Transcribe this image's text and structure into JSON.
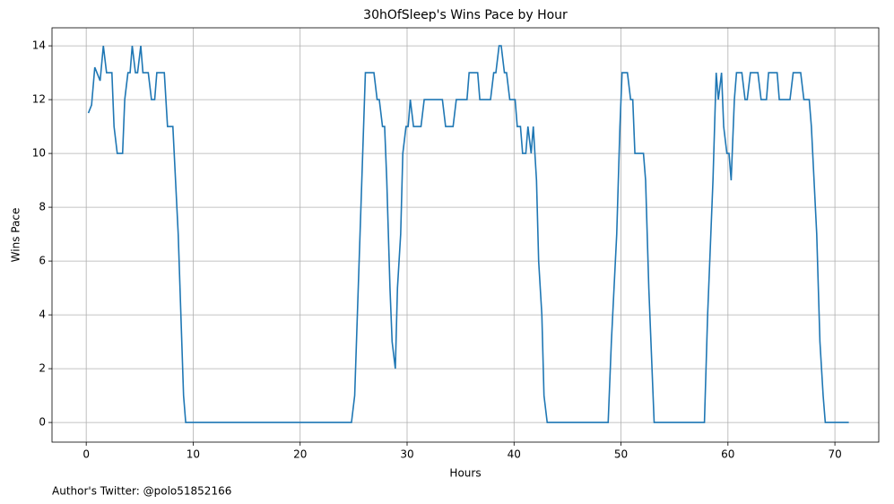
{
  "chart_data": {
    "type": "line",
    "title": "30hOfSleep's Wins Pace by Hour",
    "xlabel": "Hours",
    "ylabel": "Wins Pace",
    "footnote": "Author's Twitter: @polo51852166",
    "color": "#1f77b4",
    "grid": true,
    "xlim": [
      -3.2,
      74.1
    ],
    "ylim": [
      -0.73,
      14.67
    ],
    "xticks": [
      0,
      10,
      20,
      30,
      40,
      50,
      60,
      70
    ],
    "yticks": [
      0,
      2,
      4,
      6,
      8,
      10,
      12,
      14
    ],
    "x": [
      0.2,
      0.5,
      0.8,
      1.3,
      1.6,
      1.9,
      2.4,
      2.6,
      2.9,
      3.4,
      3.6,
      3.9,
      4.1,
      4.3,
      4.6,
      4.8,
      5.1,
      5.3,
      5.8,
      6.1,
      6.4,
      6.6,
      7.3,
      7.6,
      8.1,
      8.6,
      9.1,
      9.3,
      24.8,
      25.1,
      25.6,
      26.1,
      26.9,
      27.2,
      27.4,
      27.7,
      27.9,
      28.1,
      28.4,
      28.6,
      28.9,
      29.1,
      29.4,
      29.6,
      29.9,
      30.1,
      30.3,
      30.6,
      31.3,
      31.6,
      33.3,
      33.6,
      34.3,
      34.6,
      35.6,
      35.8,
      36.6,
      36.8,
      37.8,
      38.1,
      38.3,
      38.6,
      38.8,
      39.1,
      39.3,
      39.6,
      40.1,
      40.3,
      40.6,
      40.8,
      41.1,
      41.3,
      41.6,
      41.8,
      42.1,
      42.3,
      42.6,
      42.8,
      43.1,
      48.8,
      49.1,
      49.6,
      49.9,
      50.1,
      50.6,
      50.9,
      51.1,
      51.3,
      52.1,
      52.3,
      52.6,
      53.1,
      57.8,
      58.1,
      58.6,
      58.9,
      59.1,
      59.4,
      59.6,
      59.9,
      60.1,
      60.3,
      60.6,
      60.8,
      61.3,
      61.6,
      61.8,
      62.1,
      62.8,
      63.1,
      63.6,
      63.8,
      64.6,
      64.8,
      65.8,
      66.1,
      66.8,
      67.1,
      67.6,
      67.8,
      68.3,
      68.6,
      68.9,
      69.1,
      71.3
    ],
    "values": [
      11.5,
      11.8,
      13.2,
      12.7,
      14,
      13,
      13,
      11,
      10,
      10,
      12,
      13,
      13,
      14,
      13,
      13,
      14,
      13,
      13,
      12,
      12,
      13,
      13,
      11,
      11,
      7,
      1,
      0,
      0,
      1,
      7,
      13,
      13,
      12,
      12,
      11,
      11,
      9,
      5,
      3,
      2,
      5,
      7,
      10,
      11,
      11,
      12,
      11,
      11,
      12,
      12,
      11,
      11,
      12,
      12,
      13,
      13,
      12,
      12,
      13,
      13,
      14,
      14,
      13,
      13,
      12,
      12,
      11,
      11,
      10,
      10,
      11,
      10,
      11,
      9,
      6,
      4,
      1,
      0,
      0,
      3,
      7,
      11,
      13,
      13,
      12,
      12,
      10,
      10,
      9,
      5,
      0,
      0,
      4,
      9,
      13,
      12,
      13,
      11,
      10,
      10,
      9,
      12,
      13,
      13,
      12,
      12,
      13,
      13,
      12,
      12,
      13,
      13,
      12,
      12,
      13,
      13,
      12,
      12,
      11,
      7,
      3,
      1,
      0,
      0
    ]
  }
}
